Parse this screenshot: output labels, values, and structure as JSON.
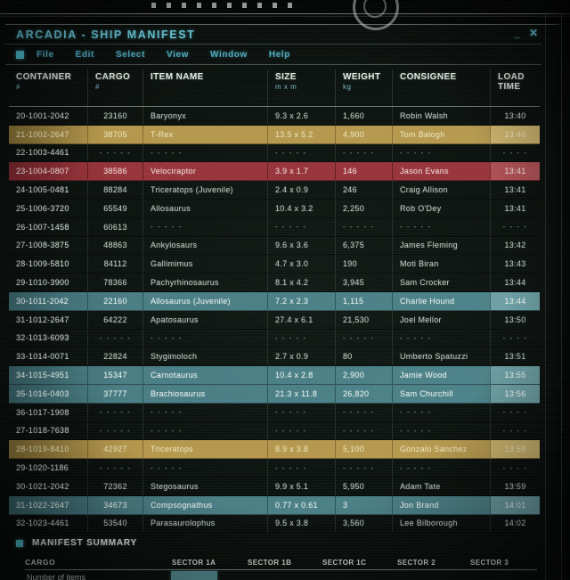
{
  "window": {
    "title": "ARCADIA - SHIP MANIFEST",
    "minimize_label": "_",
    "close_label": "✕"
  },
  "menu": {
    "items": [
      "File",
      "Edit",
      "Select",
      "View",
      "Window",
      "Help"
    ]
  },
  "table": {
    "columns": [
      {
        "key": "container",
        "label": "CONTAINER",
        "sub": "#"
      },
      {
        "key": "cargo",
        "label": "CARGO",
        "sub": "#"
      },
      {
        "key": "item",
        "label": "ITEM NAME",
        "sub": ""
      },
      {
        "key": "size",
        "label": "SIZE",
        "sub": "m x m"
      },
      {
        "key": "weight",
        "label": "WEIGHT",
        "sub": "kg"
      },
      {
        "key": "consignee",
        "label": "CONSIGNEE",
        "sub": ""
      },
      {
        "key": "time",
        "label": "LOAD TIME",
        "sub": ""
      }
    ],
    "empty_cell": "- - - - -",
    "empty_time_cell": "- - - -",
    "rows": [
      {
        "container": "20-1001-2042",
        "cargo": "23160",
        "item": "Baryonyx",
        "size": "9.3 x 2.6",
        "weight": "1,660",
        "consignee": "Robin Walsh",
        "time": "13:40",
        "highlight": "none"
      },
      {
        "container": "21-1002-2647",
        "cargo": "38705",
        "item": "T-Rex",
        "size": "13.5 x 5.2",
        "weight": "4,900",
        "consignee": "Tom Balogh",
        "time": "13:40",
        "highlight": "yellow"
      },
      {
        "container": "22-1003-4461",
        "cargo": "",
        "item": "",
        "size": "",
        "weight": "",
        "consignee": "",
        "time": "",
        "highlight": "none"
      },
      {
        "container": "23-1004-0807",
        "cargo": "38586",
        "item": "Velociraptor",
        "size": "3.9 x 1.7",
        "weight": "146",
        "consignee": "Jason Evans",
        "time": "13:41",
        "highlight": "red"
      },
      {
        "container": "24-1005-0481",
        "cargo": "88284",
        "item": "Triceratops (Juvenile)",
        "size": "2.4 x 0.9",
        "weight": "246",
        "consignee": "Craig Allison",
        "time": "13:41",
        "highlight": "none"
      },
      {
        "container": "25-1006-3720",
        "cargo": "65549",
        "item": "Allosaurus",
        "size": "10.4 x 3.2",
        "weight": "2,250",
        "consignee": "Rob O'Dey",
        "time": "13:41",
        "highlight": "none"
      },
      {
        "container": "26-1007-1458",
        "cargo": "60613",
        "item": "",
        "size": "",
        "weight": "",
        "consignee": "",
        "time": "",
        "highlight": "none"
      },
      {
        "container": "27-1008-3875",
        "cargo": "48863",
        "item": "Ankylosaurs",
        "size": "9.6 x 3.6",
        "weight": "6,375",
        "consignee": "James Fleming",
        "time": "13:42",
        "highlight": "none"
      },
      {
        "container": "28-1009-5810",
        "cargo": "84112",
        "item": "Gallimimus",
        "size": "4.7 x 3.0",
        "weight": "190",
        "consignee": "Moti Biran",
        "time": "13:43",
        "highlight": "none"
      },
      {
        "container": "29-1010-3900",
        "cargo": "78366",
        "item": "Pachyrhinosaurus",
        "size": "8.1 x 4.2",
        "weight": "3,945",
        "consignee": "Sam Crocker",
        "time": "13:44",
        "highlight": "none"
      },
      {
        "container": "30-1011-2042",
        "cargo": "22160",
        "item": "Allosaurus (Juvenile)",
        "size": "7.2 x 2.3",
        "weight": "1,115",
        "consignee": "Charlie Hound",
        "time": "13:44",
        "highlight": "teal"
      },
      {
        "container": "31-1012-2647",
        "cargo": "64222",
        "item": "Apatosaurus",
        "size": "27.4 x 6.1",
        "weight": "21,530",
        "consignee": "Joel Mellor",
        "time": "13:50",
        "highlight": "none"
      },
      {
        "container": "32-1013-6093",
        "cargo": "",
        "item": "",
        "size": "",
        "weight": "",
        "consignee": "",
        "time": "",
        "highlight": "none"
      },
      {
        "container": "33-1014-0071",
        "cargo": "22824",
        "item": "Stygimoloch",
        "size": "2.7 x 0.9",
        "weight": "80",
        "consignee": "Umberto Spatuzzi",
        "time": "13:51",
        "highlight": "none"
      },
      {
        "container": "34-1015-4951",
        "cargo": "15347",
        "item": "Carnotaurus",
        "size": "10.4 x 2.8",
        "weight": "2,900",
        "consignee": "Jamie Wood",
        "time": "13:55",
        "highlight": "teal"
      },
      {
        "container": "35-1016-0403",
        "cargo": "37777",
        "item": "Brachiosaurus",
        "size": "21.3 x 11.8",
        "weight": "26,820",
        "consignee": "Sam Churchill",
        "time": "13:56",
        "highlight": "teal"
      },
      {
        "container": "36-1017-1908",
        "cargo": "",
        "item": "",
        "size": "",
        "weight": "",
        "consignee": "",
        "time": "",
        "highlight": "none"
      },
      {
        "container": "27-1018-7638",
        "cargo": "",
        "item": "",
        "size": "",
        "weight": "",
        "consignee": "",
        "time": "",
        "highlight": "none"
      },
      {
        "container": "28-1019-8410",
        "cargo": "42927",
        "item": "Triceratops",
        "size": "8.9 x 3.8",
        "weight": "5,100",
        "consignee": "Gonzalo Sanchez",
        "time": "13:58",
        "highlight": "yellow"
      },
      {
        "container": "29-1020-1186",
        "cargo": "",
        "item": "",
        "size": "",
        "weight": "",
        "consignee": "",
        "time": "",
        "highlight": "none"
      },
      {
        "container": "30-1021-2042",
        "cargo": "72362",
        "item": "Stegosaurus",
        "size": "9.9 x 5.1",
        "weight": "5,950",
        "consignee": "Adam Tate",
        "time": "13:59",
        "highlight": "none"
      },
      {
        "container": "31-1022-2647",
        "cargo": "34673",
        "item": "Compsognathus",
        "size": "0.77 x 0.61",
        "weight": "3",
        "consignee": "Jon Brand",
        "time": "14:01",
        "highlight": "teal"
      },
      {
        "container": "32-1023-4461",
        "cargo": "53540",
        "item": "Parasaurolophus",
        "size": "9.5 x 3.8",
        "weight": "3,560",
        "consignee": "Lee Bilborough",
        "time": "14:02",
        "highlight": "none"
      }
    ]
  },
  "summary": {
    "title": "MANIFEST SUMMARY",
    "cargo_label": "CARGO",
    "sectors": [
      "SECTOR 1A",
      "SECTOR 1B",
      "SECTOR 1C",
      "SECTOR 2",
      "SECTOR 3"
    ],
    "number_row_label": "Number of items"
  },
  "colors": {
    "accent": "#4fc3d4",
    "highlight_yellow": "#b4974c",
    "highlight_red": "#98343b",
    "highlight_teal": "#4a7d84"
  }
}
